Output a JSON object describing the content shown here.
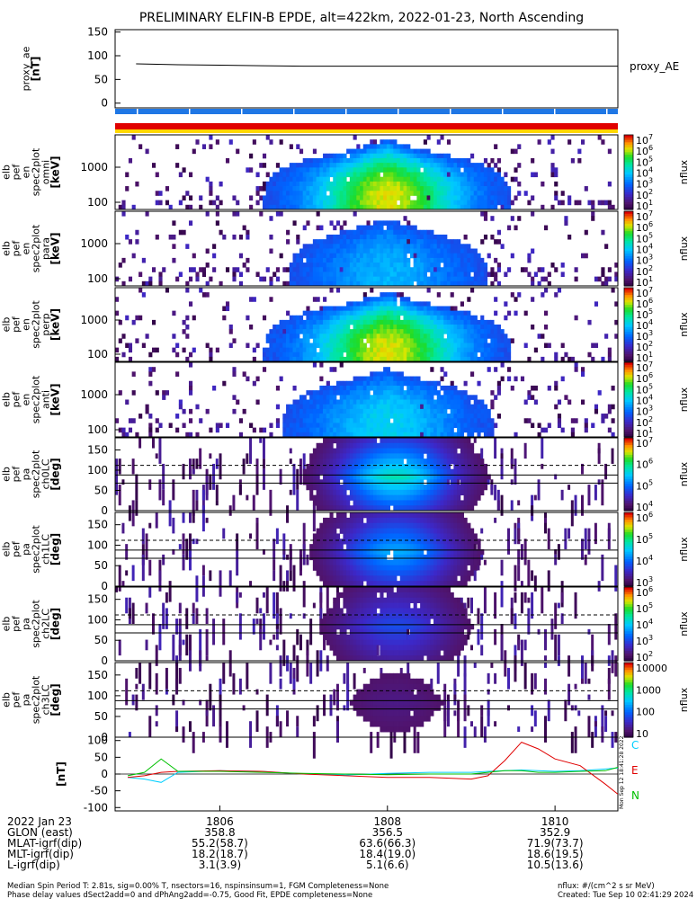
{
  "title": "PRELIMINARY ELFIN-B EPDE, alt=422km, 2022-01-23, North Ascending",
  "colors": {
    "bar_blue": "#1f77e5",
    "bar_red": "#e00000",
    "bar_yellow": "#ffd800",
    "ae_line": "#000000",
    "comp_C": "#00cfff",
    "comp_E": "#e00000",
    "comp_N": "#00c000"
  },
  "panels": [
    {
      "kind": "line",
      "label_lines": [
        "proxy_ae",
        "[nT]"
      ],
      "yticks": [
        "150",
        "100",
        "50",
        "0"
      ],
      "legend": "proxy_AE"
    },
    {
      "kind": "bars"
    },
    {
      "kind": "spec",
      "label_lines": [
        "elb",
        "pef",
        "en",
        "spec2plot",
        "omni",
        "[keV]"
      ],
      "yticks": [
        "1000",
        "100"
      ],
      "cbar_ticks": [
        "10^7",
        "10^6",
        "10^5",
        "10^4",
        "10^3",
        "10^2",
        "10^1"
      ],
      "cbar_label": "nflux"
    },
    {
      "kind": "spec",
      "label_lines": [
        "elb",
        "pef",
        "en",
        "spec2plot",
        "para",
        "[keV]"
      ],
      "yticks": [
        "1000",
        "100"
      ],
      "cbar_ticks": [
        "10^7",
        "10^6",
        "10^5",
        "10^4",
        "10^3",
        "10^2",
        "10^1"
      ],
      "cbar_label": "nflux"
    },
    {
      "kind": "spec",
      "label_lines": [
        "elb",
        "pef",
        "en",
        "spec2plot",
        "perp",
        "[keV]"
      ],
      "yticks": [
        "1000",
        "100"
      ],
      "cbar_ticks": [
        "10^7",
        "10^6",
        "10^5",
        "10^4",
        "10^3",
        "10^2",
        "10^1"
      ],
      "cbar_label": "nflux"
    },
    {
      "kind": "spec",
      "label_lines": [
        "elb",
        "pef",
        "en",
        "spec2plot",
        "anti",
        "[keV]"
      ],
      "yticks": [
        "1000",
        "100"
      ],
      "cbar_ticks": [
        "10^7",
        "10^6",
        "10^5",
        "10^4",
        "10^3",
        "10^2",
        "10^1"
      ],
      "cbar_label": "nflux"
    },
    {
      "kind": "pa",
      "label_lines": [
        "elb",
        "pef",
        "pa",
        "spec2plot",
        "ch0LC",
        "[deg]"
      ],
      "yticks": [
        "150",
        "100",
        "50",
        "0"
      ],
      "cbar_ticks": [
        "10^7",
        "10^6",
        "10^5",
        "10^4"
      ],
      "cbar_label": "nflux"
    },
    {
      "kind": "pa",
      "label_lines": [
        "elb",
        "pef",
        "pa",
        "spec2plot",
        "ch1LC",
        "[deg]"
      ],
      "yticks": [
        "150",
        "100",
        "50",
        "0"
      ],
      "cbar_ticks": [
        "10^6",
        "10^5",
        "10^4",
        "10^3"
      ],
      "cbar_label": "nflux"
    },
    {
      "kind": "pa",
      "label_lines": [
        "elb",
        "pef",
        "pa",
        "spec2plot",
        "ch2LC",
        "[deg]"
      ],
      "yticks": [
        "150",
        "100",
        "50",
        "0"
      ],
      "cbar_ticks": [
        "10^6",
        "10^5",
        "10^4",
        "10^3",
        "10^2"
      ],
      "cbar_label": "nflux"
    },
    {
      "kind": "pa",
      "label_lines": [
        "elb",
        "pef",
        "pa",
        "spec2plot",
        "ch3LC",
        "[deg]"
      ],
      "yticks": [
        "150",
        "100",
        "50",
        "0"
      ],
      "cbar_ticks": [
        "10000",
        "1000",
        "100",
        "10"
      ],
      "cbar_label": "nflux"
    },
    {
      "kind": "mag",
      "label_lines": [
        "[nT]"
      ],
      "yticks": [
        "100",
        "50",
        "0",
        "-50",
        "-100"
      ],
      "comp_labels": [
        "C",
        "E",
        "N"
      ],
      "side_note": "Mon Sep 12 18:41:28 2022"
    }
  ],
  "chart_data": [
    {
      "type": "line",
      "name": "proxy_ae",
      "ylabel": "proxy_ae [nT]",
      "ylim": [
        -10,
        155
      ],
      "x": [
        1805.0,
        1805.5,
        1806.0,
        1806.5,
        1807.0,
        1807.5,
        1808.0,
        1808.5,
        1809.0,
        1809.5,
        1810.0,
        1810.5,
        1810.75
      ],
      "series": [
        {
          "name": "proxy_AE",
          "values": [
            83,
            81,
            80,
            79,
            78,
            78,
            78,
            78,
            78,
            78,
            78,
            78,
            78
          ]
        }
      ]
    },
    {
      "type": "heatmap",
      "name": "omni energy spectrogram",
      "ylabel": "[keV]",
      "yscale": "log",
      "ylim": [
        60,
        7000
      ],
      "zlabel": "nflux",
      "zlim": [
        10,
        10000000
      ],
      "peak_time": 1808.0,
      "peak_energy_keV": 200
    },
    {
      "type": "heatmap",
      "name": "pitch angle spectrogram",
      "ylabel": "[deg]",
      "ylim": [
        0,
        180
      ],
      "zlabel": "nflux"
    },
    {
      "type": "line",
      "name": "magnetic field",
      "ylabel": "[nT]",
      "ylim": [
        -110,
        110
      ],
      "x": [
        1804.9,
        1805.1,
        1805.3,
        1805.5,
        1806.0,
        1806.5,
        1807.0,
        1807.5,
        1808.0,
        1808.5,
        1809.0,
        1809.2,
        1809.4,
        1809.6,
        1809.8,
        1810.0,
        1810.3,
        1810.6,
        1810.75
      ],
      "series": [
        {
          "name": "C",
          "values": [
            -10,
            -15,
            -25,
            5,
            10,
            8,
            0,
            -3,
            2,
            5,
            5,
            8,
            10,
            12,
            10,
            8,
            10,
            15,
            18
          ]
        },
        {
          "name": "E",
          "values": [
            -10,
            -5,
            5,
            8,
            10,
            8,
            0,
            -5,
            -10,
            -10,
            -15,
            -5,
            40,
            95,
            75,
            45,
            25,
            -30,
            -60
          ]
        },
        {
          "name": "N",
          "values": [
            -5,
            5,
            45,
            8,
            8,
            5,
            2,
            0,
            -2,
            0,
            0,
            5,
            10,
            10,
            5,
            5,
            8,
            10,
            20
          ]
        }
      ]
    }
  ],
  "xaxis": {
    "ticks": [
      {
        "time": "1806",
        "glon": "358.8",
        "mlat": "55.2(58.7)",
        "mlt": "18.2(18.7)",
        "l": "3.1(3.9)"
      },
      {
        "time": "1808",
        "glon": "356.5",
        "mlat": "63.6(66.3)",
        "mlt": "18.4(19.0)",
        "l": "5.1(6.6)"
      },
      {
        "time": "1810",
        "glon": "352.9",
        "mlat": "71.9(73.7)",
        "mlt": "18.6(19.5)",
        "l": "10.5(13.6)"
      }
    ],
    "row_labels": [
      "2022 Jan 23",
      "GLON (east)",
      "MLAT-igrf(dip)",
      "MLT-igrf(dip)",
      "L-igrf(dip)"
    ]
  },
  "footer": {
    "left_line1": "Median Spin Period T: 2.81s, sig=0.00% T, nsectors=16, nspinsinsum=1, FGM Completeness=None",
    "left_line2": "Phase delay values dSect2add=0 and dPhAng2add=-0.75, Good Fit, EPDE completeness=None",
    "right_line1": "nflux: #/(cm^2 s sr MeV)",
    "right_line2": "Created: Tue Sep 10 02:41:29 2024"
  }
}
